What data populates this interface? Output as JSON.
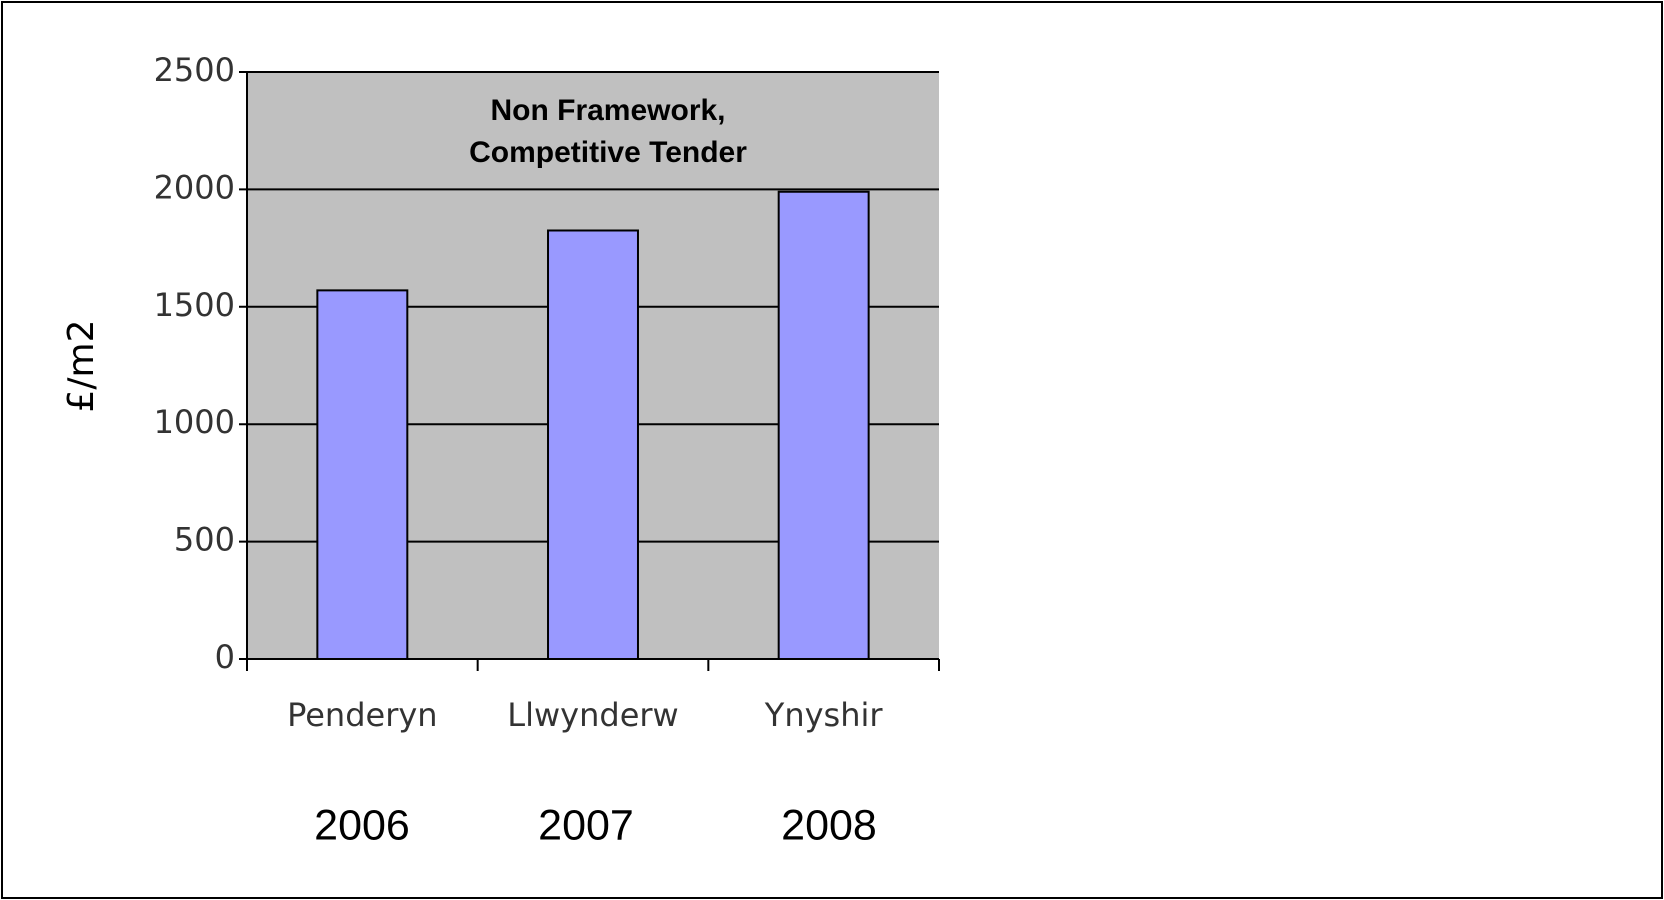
{
  "chart_data": {
    "type": "bar",
    "title": [
      "Non Framework,",
      "Competitive Tender"
    ],
    "y_label": "£/m2",
    "categories": [
      "Penderyn",
      "Llwynderw",
      "Ynyshir"
    ],
    "years": [
      "2006",
      "2007",
      "2008"
    ],
    "values": [
      1570,
      1825,
      1990
    ],
    "color": "#9999ff",
    "plot_background": "#c0c0c0",
    "ylim": [
      0,
      2500
    ],
    "yticks": [
      0,
      500,
      1000,
      1500,
      2000,
      2500
    ],
    "grid": true
  }
}
